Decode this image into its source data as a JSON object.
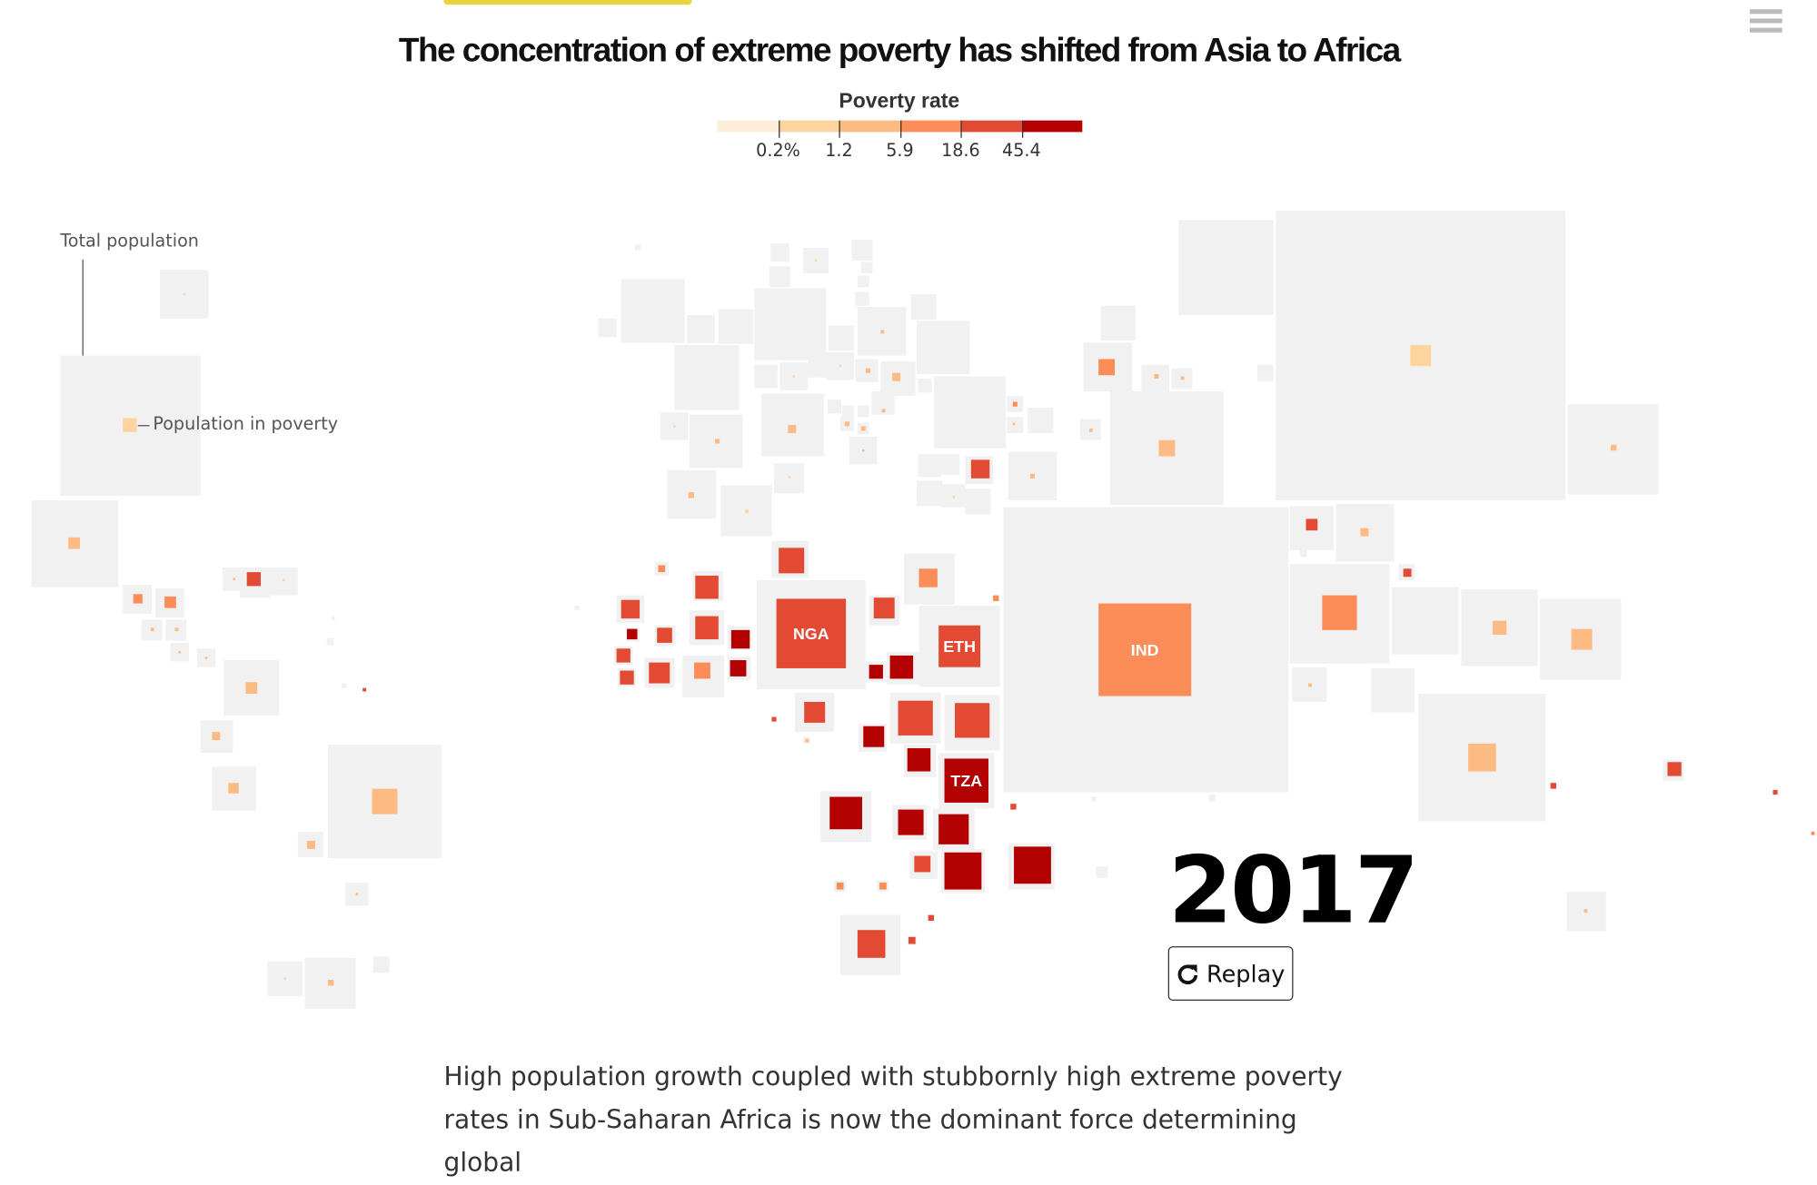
{
  "header": {
    "menu_icon": "hamburger-icon"
  },
  "chart_data": {
    "type": "tile-cartogram",
    "title": "The concentration of extreme poverty has shifted from Asia to Africa",
    "legend": {
      "title": "Poverty rate",
      "tick_labels": [
        "0.2%",
        "1.2",
        "5.9",
        "18.6",
        "45.4"
      ],
      "colors": [
        "#feedd8",
        "#fdd49e",
        "#fdbb84",
        "#fc8d59",
        "#e34a33",
        "#b30000"
      ]
    },
    "background_color": "#f1f1f1",
    "annotations": {
      "total": "Total population",
      "poverty": "Population in poverty"
    },
    "country_labels": {
      "nga": "NGA",
      "eth": "ETH",
      "tza": "TZA",
      "ind": "IND"
    },
    "year": "2017"
  },
  "controls": {
    "replay_label": "Replay",
    "replay_icon": "redo-arrow-icon"
  },
  "article": {
    "lines": [
      "High population growth coupled with stubbornly high extreme poverty",
      "rates in Sub-Saharan Africa is now the dominant force determining global"
    ]
  }
}
